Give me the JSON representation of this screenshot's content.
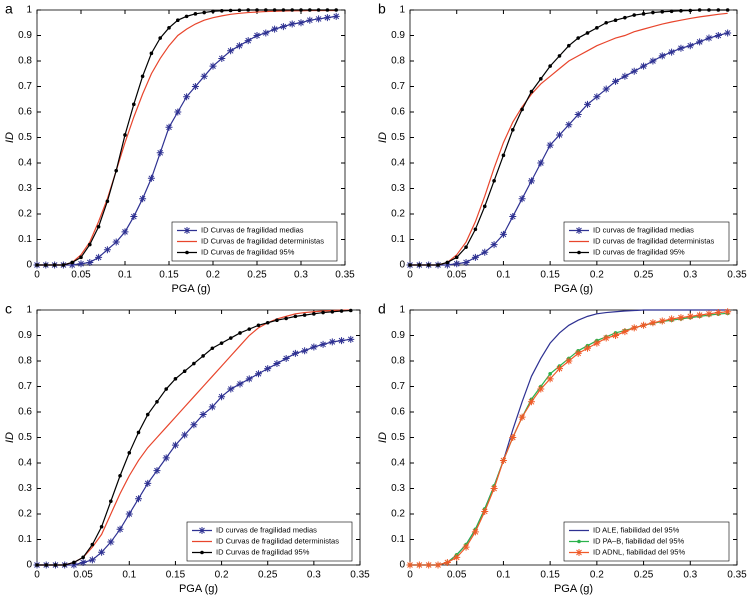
{
  "chart_data": [
    {
      "type": "line",
      "label": "a",
      "xlabel": "PGA (g)",
      "ylabel": "ID",
      "legend": "lower right",
      "xlim": [
        0,
        0.35
      ],
      "ylim": [
        0,
        1
      ],
      "xticks": [
        0,
        0.05,
        0.1,
        0.15,
        0.2,
        0.25,
        0.3,
        0.35
      ],
      "yticks": [
        0,
        0.1,
        0.2,
        0.3,
        0.4,
        0.5,
        0.6,
        0.7,
        0.8,
        0.9,
        1
      ],
      "x": [
        0,
        0.01,
        0.02,
        0.03,
        0.04,
        0.05,
        0.06,
        0.07,
        0.08,
        0.09,
        0.1,
        0.11,
        0.12,
        0.13,
        0.14,
        0.15,
        0.16,
        0.17,
        0.18,
        0.19,
        0.2,
        0.21,
        0.22,
        0.23,
        0.24,
        0.25,
        0.26,
        0.27,
        0.28,
        0.29,
        0.3,
        0.31,
        0.32,
        0.33,
        0.34
      ],
      "series": [
        {
          "name": "ID Curvas de fragilidad medias",
          "color": "#2e3192",
          "marker": "star",
          "values": [
            0,
            0,
            0,
            0,
            0,
            0.005,
            0.01,
            0.03,
            0.06,
            0.09,
            0.13,
            0.19,
            0.26,
            0.34,
            0.44,
            0.54,
            0.6,
            0.66,
            0.7,
            0.74,
            0.78,
            0.81,
            0.84,
            0.86,
            0.88,
            0.9,
            0.91,
            0.925,
            0.935,
            0.945,
            0.95,
            0.96,
            0.965,
            0.97,
            0.975
          ]
        },
        {
          "name": "ID Curvas de fragilidad deterministas",
          "color": "#e8452c",
          "marker": "none",
          "values": [
            0,
            0,
            0,
            0,
            0.01,
            0.04,
            0.09,
            0.17,
            0.26,
            0.37,
            0.48,
            0.58,
            0.67,
            0.75,
            0.81,
            0.86,
            0.9,
            0.925,
            0.945,
            0.96,
            0.97,
            0.977,
            0.983,
            0.987,
            0.99,
            0.992,
            0.994,
            0.995,
            0.996,
            0.997,
            0.997,
            0.998,
            0.998,
            0.998,
            0.998
          ]
        },
        {
          "name": "ID Curvas de fragilidad 95%",
          "color": "#000000",
          "marker": "dot",
          "values": [
            0,
            0,
            0,
            0,
            0.01,
            0.03,
            0.08,
            0.15,
            0.25,
            0.37,
            0.51,
            0.63,
            0.74,
            0.83,
            0.89,
            0.93,
            0.96,
            0.975,
            0.985,
            0.99,
            0.995,
            0.997,
            0.998,
            0.999,
            1,
            1,
            1,
            1,
            1,
            1,
            1,
            1,
            1,
            1,
            1
          ]
        }
      ]
    },
    {
      "type": "line",
      "label": "b",
      "xlabel": "PGA (g)",
      "ylabel": "ID",
      "legend": "lower right",
      "xlim": [
        0,
        0.35
      ],
      "ylim": [
        0,
        1
      ],
      "xticks": [
        0,
        0.05,
        0.1,
        0.15,
        0.2,
        0.25,
        0.3,
        0.35
      ],
      "yticks": [
        0,
        0.1,
        0.2,
        0.3,
        0.4,
        0.5,
        0.6,
        0.7,
        0.8,
        0.9,
        1
      ],
      "x": [
        0,
        0.01,
        0.02,
        0.03,
        0.04,
        0.05,
        0.06,
        0.07,
        0.08,
        0.09,
        0.1,
        0.11,
        0.12,
        0.13,
        0.14,
        0.15,
        0.16,
        0.17,
        0.18,
        0.19,
        0.2,
        0.21,
        0.22,
        0.23,
        0.24,
        0.25,
        0.26,
        0.27,
        0.28,
        0.29,
        0.3,
        0.31,
        0.32,
        0.33,
        0.34
      ],
      "series": [
        {
          "name": "ID curvas de fragilidad medias",
          "color": "#2e3192",
          "marker": "star",
          "values": [
            0,
            0,
            0,
            0,
            0,
            0.005,
            0.01,
            0.03,
            0.05,
            0.08,
            0.12,
            0.19,
            0.26,
            0.33,
            0.4,
            0.47,
            0.51,
            0.55,
            0.59,
            0.63,
            0.66,
            0.69,
            0.72,
            0.74,
            0.76,
            0.78,
            0.8,
            0.82,
            0.835,
            0.85,
            0.86,
            0.875,
            0.89,
            0.9,
            0.91
          ]
        },
        {
          "name": "ID curvas de fragilidad deterministas",
          "color": "#e8452c",
          "marker": "none",
          "values": [
            0,
            0,
            0,
            0,
            0.01,
            0.04,
            0.09,
            0.17,
            0.27,
            0.38,
            0.48,
            0.56,
            0.62,
            0.67,
            0.71,
            0.74,
            0.77,
            0.8,
            0.82,
            0.84,
            0.86,
            0.875,
            0.89,
            0.9,
            0.915,
            0.925,
            0.935,
            0.945,
            0.953,
            0.96,
            0.967,
            0.973,
            0.978,
            0.983,
            0.987
          ]
        },
        {
          "name": "ID curvas de fragilidad 95%",
          "color": "#000000",
          "marker": "dot",
          "values": [
            0,
            0,
            0,
            0,
            0.01,
            0.03,
            0.07,
            0.14,
            0.23,
            0.33,
            0.43,
            0.53,
            0.61,
            0.68,
            0.73,
            0.78,
            0.82,
            0.86,
            0.89,
            0.91,
            0.93,
            0.95,
            0.96,
            0.97,
            0.98,
            0.985,
            0.99,
            0.993,
            0.995,
            0.997,
            0.998,
            1,
            1,
            1,
            1
          ]
        }
      ]
    },
    {
      "type": "line",
      "label": "c",
      "xlabel": "PGA (g)",
      "ylabel": "ID",
      "legend": "lower right",
      "xlim": [
        0,
        0.35
      ],
      "ylim": [
        0,
        1
      ],
      "xticks": [
        0,
        0.05,
        0.1,
        0.15,
        0.2,
        0.25,
        0.3,
        0.35
      ],
      "yticks": [
        0,
        0.1,
        0.2,
        0.3,
        0.4,
        0.5,
        0.6,
        0.7,
        0.8,
        0.9,
        1
      ],
      "x": [
        0,
        0.01,
        0.02,
        0.03,
        0.04,
        0.05,
        0.06,
        0.07,
        0.08,
        0.09,
        0.1,
        0.11,
        0.12,
        0.13,
        0.14,
        0.15,
        0.16,
        0.17,
        0.18,
        0.19,
        0.2,
        0.21,
        0.22,
        0.23,
        0.24,
        0.25,
        0.26,
        0.27,
        0.28,
        0.29,
        0.3,
        0.31,
        0.32,
        0.33,
        0.34
      ],
      "series": [
        {
          "name": "ID curvas de fragilidad medias",
          "color": "#2e3192",
          "marker": "star",
          "values": [
            0,
            0,
            0,
            0,
            0,
            0.01,
            0.02,
            0.05,
            0.09,
            0.14,
            0.2,
            0.26,
            0.32,
            0.37,
            0.42,
            0.47,
            0.51,
            0.55,
            0.59,
            0.62,
            0.66,
            0.69,
            0.71,
            0.73,
            0.75,
            0.77,
            0.79,
            0.81,
            0.83,
            0.84,
            0.855,
            0.865,
            0.875,
            0.88,
            0.885
          ]
        },
        {
          "name": "ID Curvas de fragilidad deterministas",
          "color": "#e8452c",
          "marker": "none",
          "values": [
            0,
            0,
            0,
            0,
            0.01,
            0.03,
            0.07,
            0.12,
            0.2,
            0.28,
            0.35,
            0.41,
            0.46,
            0.5,
            0.54,
            0.58,
            0.62,
            0.66,
            0.7,
            0.74,
            0.78,
            0.82,
            0.86,
            0.9,
            0.93,
            0.95,
            0.965,
            0.975,
            0.985,
            0.99,
            0.993,
            0.996,
            0.998,
            0.999,
            1
          ]
        },
        {
          "name": "ID Curvas de fragilidad 95%",
          "color": "#000000",
          "marker": "dot",
          "values": [
            0,
            0,
            0,
            0,
            0.01,
            0.03,
            0.08,
            0.15,
            0.25,
            0.35,
            0.44,
            0.52,
            0.59,
            0.64,
            0.69,
            0.73,
            0.76,
            0.79,
            0.82,
            0.85,
            0.87,
            0.89,
            0.91,
            0.925,
            0.94,
            0.95,
            0.96,
            0.967,
            0.975,
            0.98,
            0.985,
            0.99,
            0.993,
            0.996,
            0.998
          ]
        }
      ]
    },
    {
      "type": "line",
      "label": "d",
      "xlabel": "PGA (g)",
      "ylabel": "ID",
      "legend": "lower right",
      "xlim": [
        0,
        0.35
      ],
      "ylim": [
        0,
        1
      ],
      "xticks": [
        0,
        0.05,
        0.1,
        0.15,
        0.2,
        0.25,
        0.3,
        0.35
      ],
      "yticks": [
        0,
        0.1,
        0.2,
        0.3,
        0.4,
        0.5,
        0.6,
        0.7,
        0.8,
        0.9,
        1
      ],
      "x": [
        0,
        0.01,
        0.02,
        0.03,
        0.04,
        0.05,
        0.06,
        0.07,
        0.08,
        0.09,
        0.1,
        0.11,
        0.12,
        0.13,
        0.14,
        0.15,
        0.16,
        0.17,
        0.18,
        0.19,
        0.2,
        0.21,
        0.22,
        0.23,
        0.24,
        0.25,
        0.26,
        0.27,
        0.28,
        0.29,
        0.3,
        0.31,
        0.32,
        0.33,
        0.34
      ],
      "series": [
        {
          "name": "ID ALE, fiabilidad del 95%",
          "color": "#2e3192",
          "marker": "none",
          "values": [
            0,
            0,
            0,
            0,
            0.01,
            0.04,
            0.08,
            0.14,
            0.22,
            0.31,
            0.41,
            0.53,
            0.64,
            0.74,
            0.81,
            0.87,
            0.91,
            0.94,
            0.96,
            0.975,
            0.985,
            0.99,
            0.993,
            0.996,
            0.998,
            1,
            1,
            1,
            1,
            1,
            1,
            1,
            1,
            1,
            1
          ]
        },
        {
          "name": "ID PA–B, fiabilidad del 95%",
          "color": "#2bb24c",
          "marker": "dot",
          "values": [
            0,
            0,
            0,
            0,
            0.01,
            0.04,
            0.08,
            0.14,
            0.22,
            0.31,
            0.41,
            0.5,
            0.58,
            0.65,
            0.7,
            0.75,
            0.78,
            0.81,
            0.84,
            0.86,
            0.88,
            0.895,
            0.91,
            0.92,
            0.93,
            0.94,
            0.948,
            0.955,
            0.96,
            0.965,
            0.97,
            0.975,
            0.98,
            0.984,
            0.987
          ]
        },
        {
          "name": "ID ADNL, fiabilidad del 95%",
          "color": "#f05a28",
          "marker": "star",
          "values": [
            0,
            0,
            0,
            0,
            0.01,
            0.03,
            0.07,
            0.13,
            0.21,
            0.3,
            0.41,
            0.5,
            0.58,
            0.64,
            0.69,
            0.73,
            0.77,
            0.8,
            0.83,
            0.85,
            0.87,
            0.89,
            0.9,
            0.915,
            0.93,
            0.94,
            0.95,
            0.957,
            0.965,
            0.97,
            0.975,
            0.98,
            0.985,
            0.99,
            0.993
          ]
        }
      ]
    }
  ]
}
